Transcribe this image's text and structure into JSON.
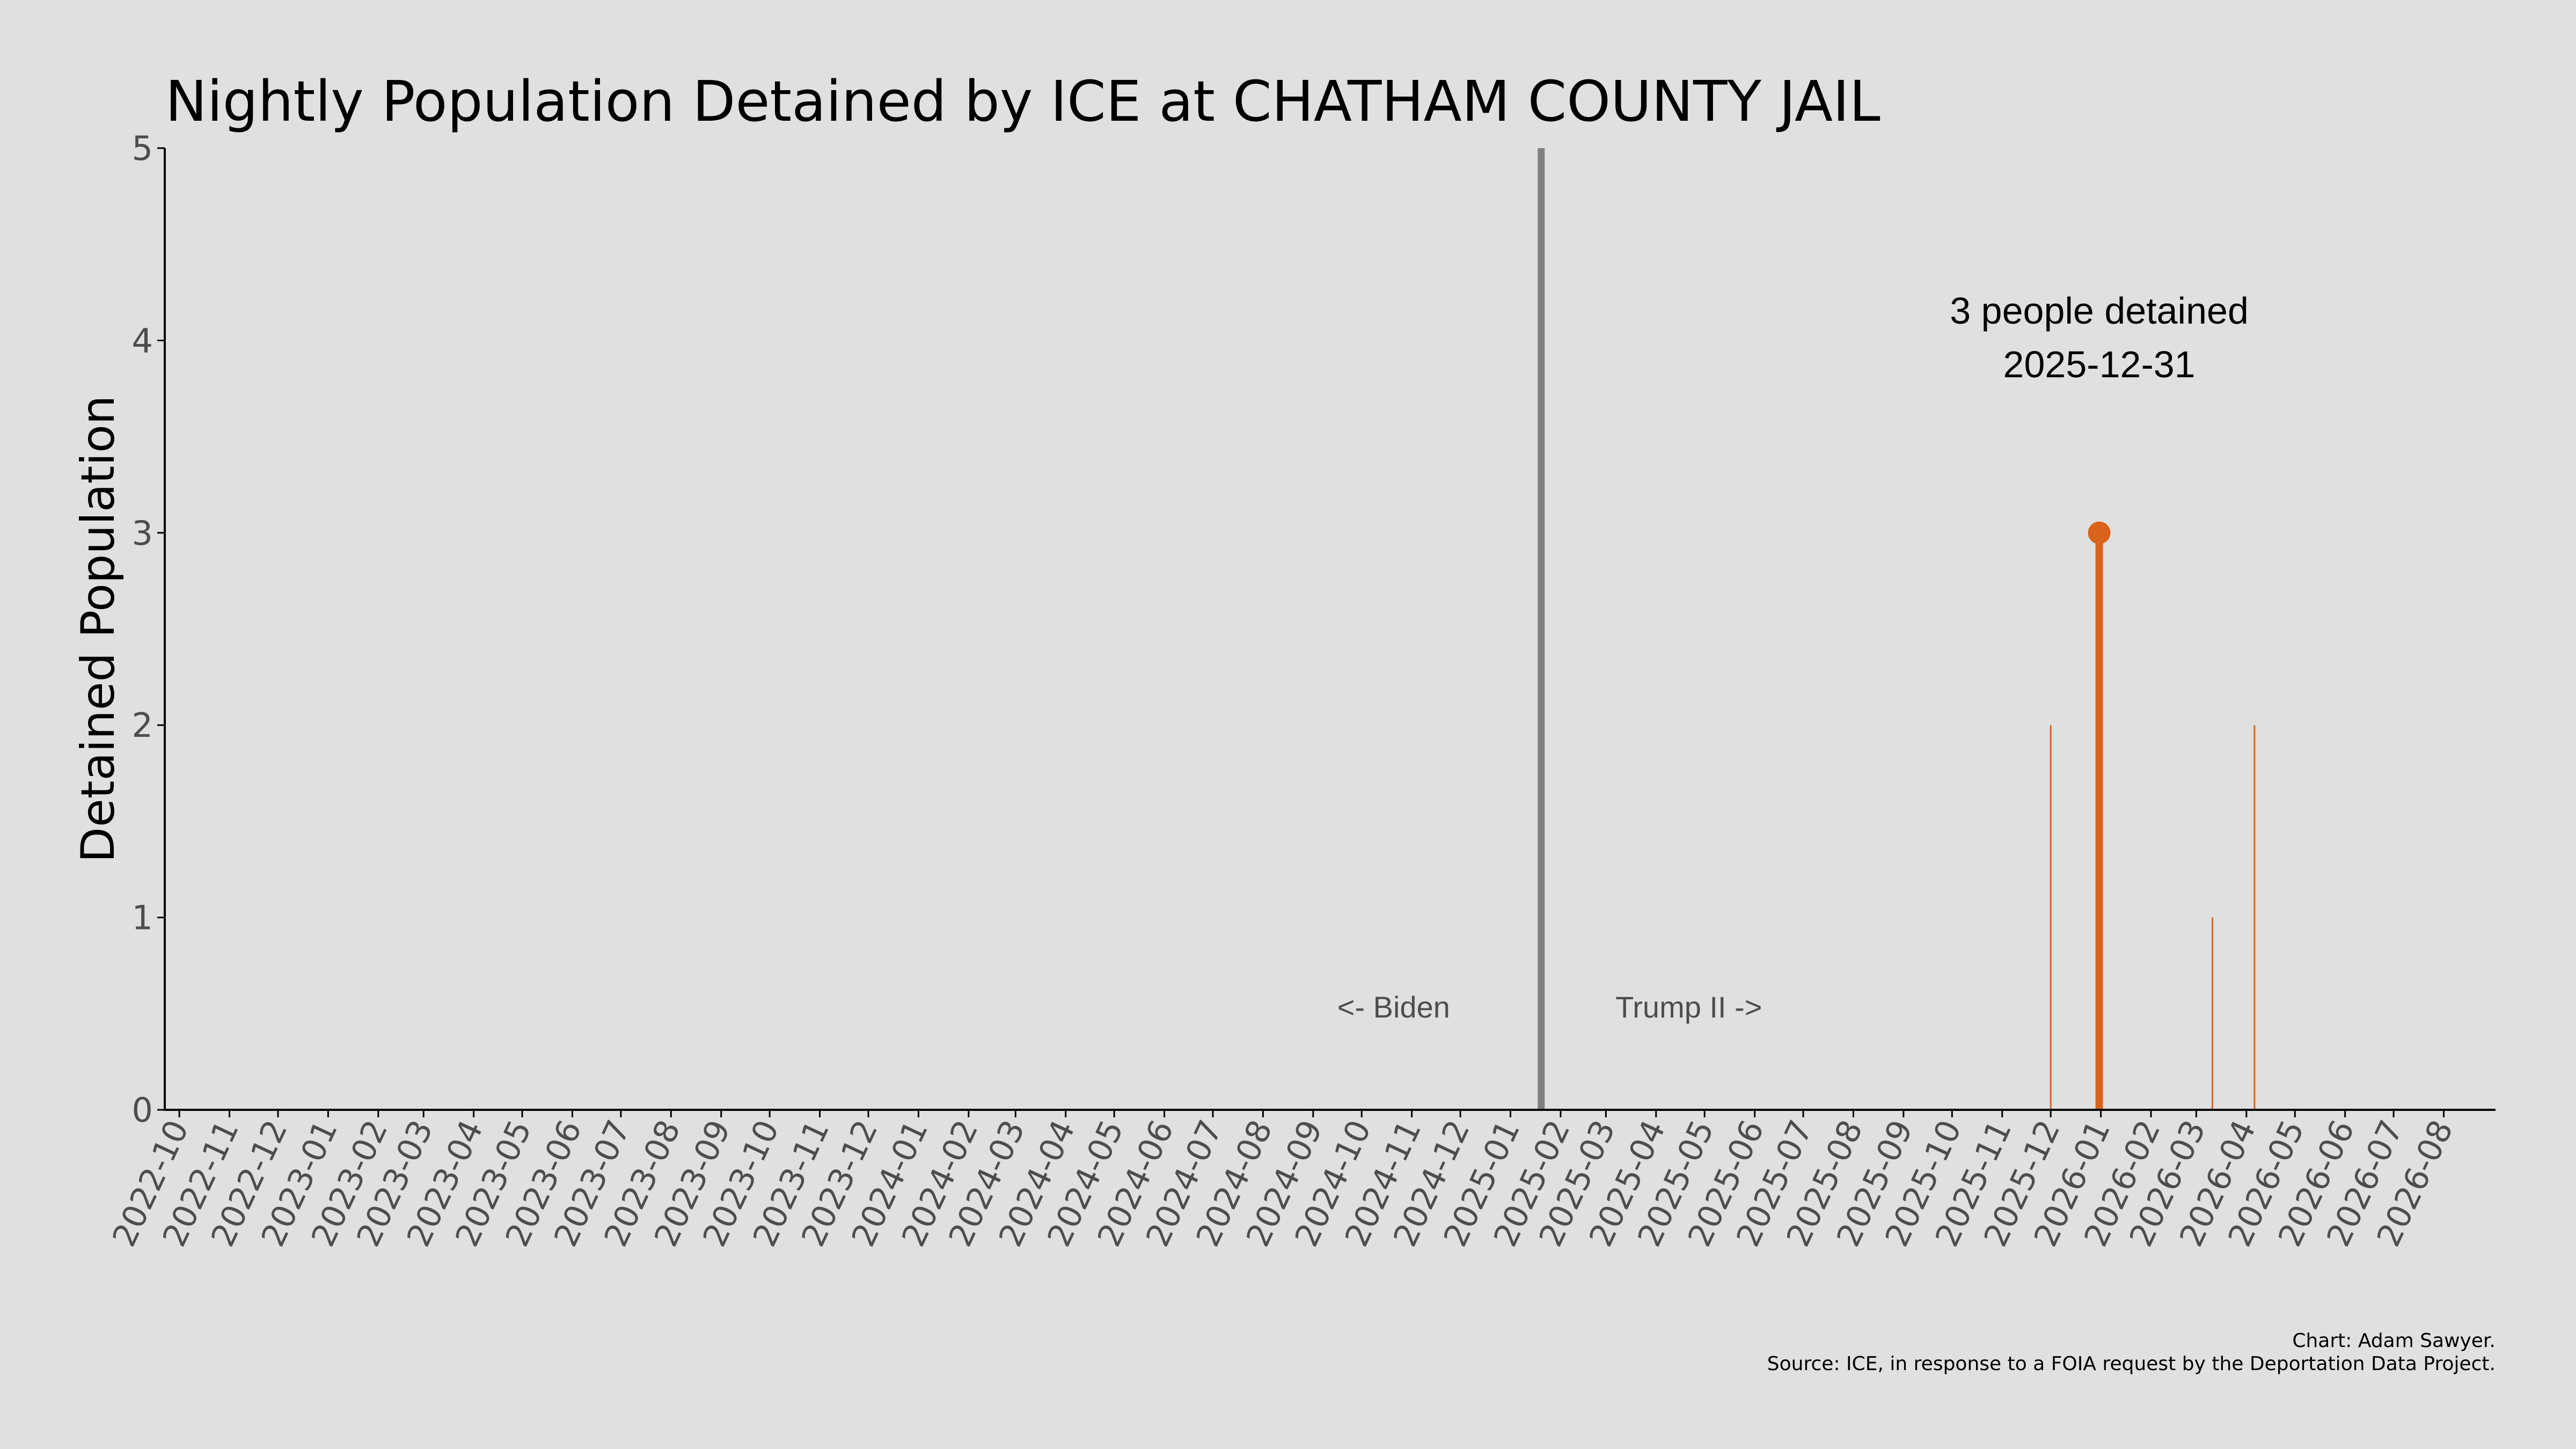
{
  "chart_data": {
    "type": "bar",
    "title": "Nightly Population Detained by ICE at CHATHAM COUNTY JAIL",
    "ylabel": "Detained Population",
    "xlabel": "",
    "ylim": [
      0,
      5
    ],
    "yticks": [
      0,
      1,
      2,
      3,
      4,
      5
    ],
    "x_range": [
      "2022-09-22",
      "2026-09-02"
    ],
    "xtick_labels": [
      "2022-10",
      "2022-11",
      "2022-12",
      "2023-01",
      "2023-02",
      "2023-03",
      "2023-04",
      "2023-05",
      "2023-06",
      "2023-07",
      "2023-08",
      "2023-09",
      "2023-10",
      "2023-11",
      "2023-12",
      "2024-01",
      "2024-02",
      "2024-03",
      "2024-04",
      "2024-05",
      "2024-06",
      "2024-07",
      "2024-08",
      "2024-09",
      "2024-10",
      "2024-11",
      "2024-12",
      "2025-01",
      "2025-02",
      "2025-03",
      "2025-04",
      "2025-05",
      "2025-06",
      "2025-07",
      "2025-08",
      "2025-09",
      "2025-10",
      "2025-11",
      "2025-12",
      "2026-01",
      "2026-02",
      "2026-03",
      "2026-04",
      "2026-05",
      "2026-06",
      "2026-07",
      "2026-08"
    ],
    "grid": false,
    "bar_color": "#d9631a",
    "divider_color": "#808080",
    "series": [
      {
        "points": [
          {
            "date": "2025-12-01",
            "value": 2
          },
          {
            "date": "2025-12-31",
            "value": 3,
            "highlight": true
          },
          {
            "date": "2026-03-11",
            "value": 1
          },
          {
            "date": "2026-04-06",
            "value": 2
          }
        ]
      }
    ],
    "divider_date": "2025-01-20",
    "era_labels": {
      "left": "<- Biden",
      "right": "Trump II ->"
    },
    "annotation": {
      "line1": "3 people detained",
      "line2": "2025-12-31"
    }
  },
  "credits": {
    "line1": "Chart: Adam Sawyer.",
    "line2": "Source: ICE, in response to a FOIA request by the Deportation Data Project."
  }
}
